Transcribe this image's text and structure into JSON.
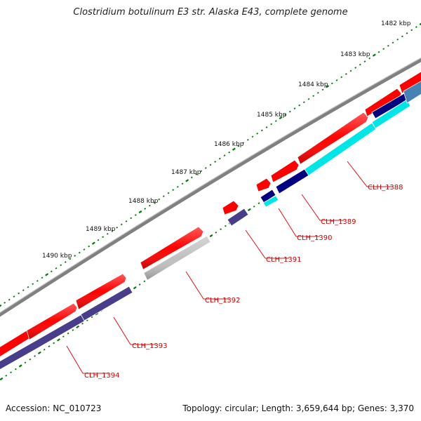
{
  "title": "Clostridium botulinum E3 str. Alaska E43, complete genome",
  "footer": {
    "accession": "Accession: NC_010723",
    "summary": "Topology: circular; Length: 3,659,644 bp; Genes: 3,370"
  },
  "ruler": {
    "labels": [
      "1482 kbp",
      "1483 kbp",
      "1484 kbp",
      "1485 kbp",
      "1486 kbp",
      "1487 kbp",
      "1488 kbp",
      "1489 kbp",
      "1490 kbp"
    ]
  },
  "genes": [
    {
      "name": "CLH_1388",
      "color": "#00e5e5"
    },
    {
      "name": "CLH_1389",
      "color": "#000080"
    },
    {
      "name": "CLH_1390",
      "color": "#000080"
    },
    {
      "name": "CLH_1391",
      "color": "#483d8b"
    },
    {
      "name": "CLH_1392",
      "color": "#c0c0c0"
    },
    {
      "name": "CLH_1393",
      "color": "#483d8b"
    },
    {
      "name": "CLH_1394",
      "color": "#483d8b"
    }
  ],
  "colors": {
    "cds": "#ff0000",
    "backbone": "#808080",
    "tick": "#007700",
    "label": "#cc0000",
    "gene_blue": "#0000ff",
    "steel": "#4682b4"
  }
}
